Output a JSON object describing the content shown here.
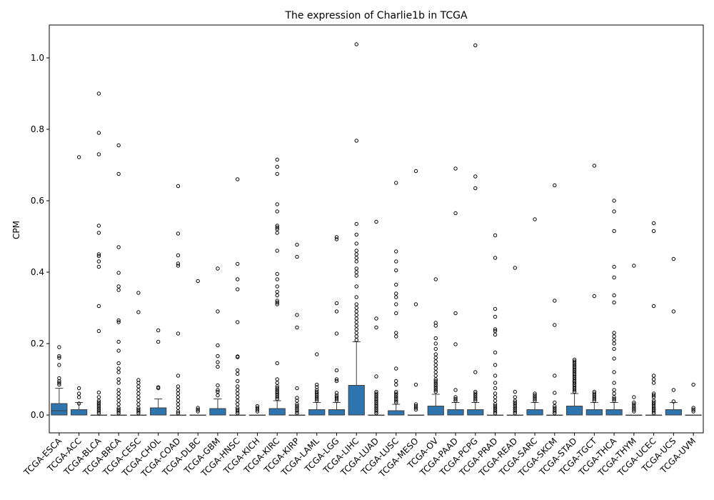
{
  "chart_data": {
    "type": "box",
    "title": "The expression of Charlie1b in TCGA",
    "xlabel": "",
    "ylabel": "CPM",
    "ylim": [
      -0.05,
      1.09
    ],
    "yticks": [
      0.0,
      0.2,
      0.4,
      0.6,
      0.8,
      1.0
    ],
    "ytick_labels": [
      "0.0",
      "0.2",
      "0.4",
      "0.6",
      "0.8",
      "1.0"
    ],
    "box_color": "#2e75b0",
    "categories": [
      "TCGA-ESCA",
      "TCGA-ACC",
      "TCGA-BLCA",
      "TCGA-BRCA",
      "TCGA-CESC",
      "TCGA-CHOL",
      "TCGA-COAD",
      "TCGA-DLBC",
      "TCGA-GBM",
      "TCGA-HNSC",
      "TCGA-KICH",
      "TCGA-KIRC",
      "TCGA-KIRP",
      "TCGA-LAML",
      "TCGA-LGG",
      "TCGA-LIHC",
      "TCGA-LUAD",
      "TCGA-LUSC",
      "TCGA-MESO",
      "TCGA-OV",
      "TCGA-PAAD",
      "TCGA-PCPG",
      "TCGA-PRAD",
      "TCGA-READ",
      "TCGA-SARC",
      "TCGA-SKCM",
      "TCGA-STAD",
      "TCGA-TGCT",
      "TCGA-THCA",
      "TCGA-THYM",
      "TCGA-UCEC",
      "TCGA-UCS",
      "TCGA-UVM"
    ],
    "boxes": [
      {
        "min": 0,
        "q1": 0,
        "median": 0.012,
        "q3": 0.032,
        "max": 0.075,
        "outliers": [
          0.09,
          0.085,
          0.095,
          0.103,
          0.14,
          0.16,
          0.165,
          0.19
        ]
      },
      {
        "min": 0,
        "q1": 0,
        "median": 0,
        "q3": 0.015,
        "max": 0.035,
        "outliers": [
          0.032,
          0.05,
          0.06,
          0.075,
          0.722
        ]
      },
      {
        "min": 0,
        "q1": 0,
        "median": 0,
        "q3": 0,
        "max": 0,
        "outliers": [
          0.005,
          0.01,
          0.015,
          0.02,
          0.025,
          0.03,
          0.035,
          0.04,
          0.05,
          0.063,
          0.235,
          0.305,
          0.415,
          0.43,
          0.445,
          0.45,
          0.51,
          0.53,
          0.73,
          0.79,
          0.9
        ]
      },
      {
        "min": 0,
        "q1": 0,
        "median": 0,
        "q3": 0,
        "max": 0,
        "outliers": [
          0.005,
          0.01,
          0.015,
          0.02,
          0.03,
          0.04,
          0.05,
          0.06,
          0.07,
          0.09,
          0.1,
          0.12,
          0.13,
          0.145,
          0.18,
          0.205,
          0.26,
          0.265,
          0.35,
          0.36,
          0.398,
          0.47,
          0.675,
          0.755
        ]
      },
      {
        "min": 0,
        "q1": 0,
        "median": 0,
        "q3": 0,
        "max": 0,
        "outliers": [
          0.005,
          0.01,
          0.015,
          0.02,
          0.03,
          0.04,
          0.05,
          0.06,
          0.07,
          0.08,
          0.09,
          0.098,
          0.288,
          0.342
        ]
      },
      {
        "min": 0,
        "q1": 0,
        "median": 0,
        "q3": 0.02,
        "max": 0.045,
        "outliers": [
          0.075,
          0.078,
          0.205,
          0.237
        ]
      },
      {
        "min": 0,
        "q1": 0,
        "median": 0,
        "q3": 0,
        "max": 0,
        "outliers": [
          0.005,
          0.01,
          0.02,
          0.03,
          0.04,
          0.05,
          0.06,
          0.07,
          0.08,
          0.11,
          0.228,
          0.418,
          0.424,
          0.447,
          0.508,
          0.641
        ]
      },
      {
        "min": 0,
        "q1": 0,
        "median": 0,
        "q3": 0,
        "max": 0,
        "outliers": [
          0.01,
          0.015,
          0.02,
          0.375
        ]
      },
      {
        "min": 0,
        "q1": 0,
        "median": 0,
        "q3": 0.018,
        "max": 0.045,
        "outliers": [
          0.055,
          0.065,
          0.07,
          0.083,
          0.135,
          0.148,
          0.165,
          0.195,
          0.29,
          0.41
        ]
      },
      {
        "min": 0,
        "q1": 0,
        "median": 0,
        "q3": 0,
        "max": 0,
        "outliers": [
          0.005,
          0.01,
          0.015,
          0.02,
          0.03,
          0.04,
          0.05,
          0.06,
          0.07,
          0.08,
          0.095,
          0.115,
          0.125,
          0.162,
          0.164,
          0.26,
          0.352,
          0.38,
          0.423,
          0.66
        ]
      },
      {
        "min": 0,
        "q1": 0,
        "median": 0,
        "q3": 0,
        "max": 0,
        "outliers": [
          0.01,
          0.015,
          0.02,
          0.025
        ]
      },
      {
        "min": 0,
        "q1": 0,
        "median": 0,
        "q3": 0.018,
        "max": 0.04,
        "outliers": [
          0.045,
          0.05,
          0.055,
          0.06,
          0.065,
          0.07,
          0.075,
          0.08,
          0.09,
          0.1,
          0.145,
          0.31,
          0.315,
          0.32,
          0.335,
          0.345,
          0.36,
          0.38,
          0.395,
          0.46,
          0.51,
          0.52,
          0.525,
          0.53,
          0.57,
          0.59,
          0.675,
          0.695,
          0.715
        ]
      },
      {
        "min": 0,
        "q1": 0,
        "median": 0,
        "q3": 0,
        "max": 0,
        "outliers": [
          0.005,
          0.01,
          0.015,
          0.02,
          0.025,
          0.03,
          0.04,
          0.048,
          0.075,
          0.245,
          0.28,
          0.443,
          0.477
        ]
      },
      {
        "min": 0,
        "q1": 0,
        "median": 0,
        "q3": 0.015,
        "max": 0.035,
        "outliers": [
          0.04,
          0.045,
          0.05,
          0.055,
          0.06,
          0.065,
          0.07,
          0.078,
          0.085,
          0.17
        ]
      },
      {
        "min": 0,
        "q1": 0,
        "median": 0,
        "q3": 0.015,
        "max": 0.035,
        "outliers": [
          0.04,
          0.045,
          0.05,
          0.055,
          0.062,
          0.095,
          0.1,
          0.125,
          0.228,
          0.29,
          0.313,
          0.492,
          0.498
        ]
      },
      {
        "min": 0,
        "q1": 0,
        "median": 0,
        "q3": 0.083,
        "max": 0.205,
        "outliers": [
          0.21,
          0.22,
          0.23,
          0.24,
          0.25,
          0.26,
          0.27,
          0.28,
          0.29,
          0.3,
          0.31,
          0.33,
          0.36,
          0.39,
          0.4,
          0.41,
          0.43,
          0.44,
          0.45,
          0.46,
          0.48,
          0.505,
          0.535,
          0.768,
          1.038
        ]
      },
      {
        "min": 0,
        "q1": 0,
        "median": 0,
        "q3": 0,
        "max": 0,
        "outliers": [
          0.005,
          0.01,
          0.015,
          0.02,
          0.025,
          0.03,
          0.035,
          0.04,
          0.045,
          0.05,
          0.055,
          0.06,
          0.065,
          0.108,
          0.245,
          0.27,
          0.541
        ]
      },
      {
        "min": 0,
        "q1": 0,
        "median": 0,
        "q3": 0.012,
        "max": 0.03,
        "outliers": [
          0.035,
          0.04,
          0.045,
          0.05,
          0.055,
          0.06,
          0.065,
          0.085,
          0.095,
          0.13,
          0.22,
          0.23,
          0.285,
          0.31,
          0.33,
          0.34,
          0.365,
          0.405,
          0.43,
          0.458,
          0.65
        ]
      },
      {
        "min": 0,
        "q1": 0,
        "median": 0,
        "q3": 0,
        "max": 0,
        "outliers": [
          0.015,
          0.02,
          0.025,
          0.03,
          0.085,
          0.31,
          0.683
        ]
      },
      {
        "min": 0,
        "q1": 0,
        "median": 0,
        "q3": 0.025,
        "max": 0.058,
        "outliers": [
          0.065,
          0.07,
          0.075,
          0.08,
          0.085,
          0.09,
          0.095,
          0.1,
          0.11,
          0.12,
          0.13,
          0.14,
          0.15,
          0.16,
          0.17,
          0.185,
          0.2,
          0.215,
          0.25,
          0.258,
          0.38
        ]
      },
      {
        "min": 0,
        "q1": 0,
        "median": 0,
        "q3": 0.015,
        "max": 0.035,
        "outliers": [
          0.04,
          0.045,
          0.05,
          0.07,
          0.198,
          0.285,
          0.565,
          0.69
        ]
      },
      {
        "min": 0,
        "q1": 0,
        "median": 0,
        "q3": 0.015,
        "max": 0.035,
        "outliers": [
          0.04,
          0.045,
          0.05,
          0.055,
          0.06,
          0.065,
          0.12,
          0.635,
          0.668,
          1.035
        ]
      },
      {
        "min": 0,
        "q1": 0,
        "median": 0,
        "q3": 0,
        "max": 0,
        "outliers": [
          0.005,
          0.01,
          0.015,
          0.02,
          0.025,
          0.03,
          0.04,
          0.05,
          0.06,
          0.075,
          0.09,
          0.11,
          0.14,
          0.175,
          0.225,
          0.235,
          0.24,
          0.275,
          0.297,
          0.44,
          0.503
        ]
      },
      {
        "min": 0,
        "q1": 0,
        "median": 0,
        "q3": 0,
        "max": 0,
        "outliers": [
          0.005,
          0.01,
          0.015,
          0.02,
          0.025,
          0.03,
          0.035,
          0.04,
          0.05,
          0.065,
          0.412
        ]
      },
      {
        "min": 0,
        "q1": 0,
        "median": 0,
        "q3": 0.015,
        "max": 0.035,
        "outliers": [
          0.04,
          0.045,
          0.05,
          0.055,
          0.06,
          0.548
        ]
      },
      {
        "min": 0,
        "q1": 0,
        "median": 0,
        "q3": 0,
        "max": 0,
        "outliers": [
          0.005,
          0.01,
          0.015,
          0.02,
          0.025,
          0.035,
          0.062,
          0.11,
          0.252,
          0.32,
          0.643
        ]
      },
      {
        "min": 0,
        "q1": 0,
        "median": 0,
        "q3": 0.025,
        "max": 0.06,
        "outliers": [
          0.065,
          0.07,
          0.075,
          0.08,
          0.085,
          0.09,
          0.095,
          0.1,
          0.105,
          0.11,
          0.115,
          0.12,
          0.125,
          0.13,
          0.135,
          0.14,
          0.145,
          0.15,
          0.155
        ]
      },
      {
        "min": 0,
        "q1": 0,
        "median": 0,
        "q3": 0.015,
        "max": 0.035,
        "outliers": [
          0.04,
          0.045,
          0.05,
          0.055,
          0.06,
          0.065,
          0.333,
          0.698
        ]
      },
      {
        "min": 0,
        "q1": 0,
        "median": 0,
        "q3": 0.015,
        "max": 0.035,
        "outliers": [
          0.04,
          0.045,
          0.05,
          0.06,
          0.07,
          0.09,
          0.12,
          0.158,
          0.185,
          0.2,
          0.21,
          0.22,
          0.23,
          0.315,
          0.335,
          0.385,
          0.415,
          0.515,
          0.57,
          0.6
        ]
      },
      {
        "min": 0,
        "q1": 0,
        "median": 0,
        "q3": 0,
        "max": 0,
        "outliers": [
          0.01,
          0.015,
          0.02,
          0.025,
          0.03,
          0.035,
          0.05,
          0.418
        ]
      },
      {
        "min": 0,
        "q1": 0,
        "median": 0,
        "q3": 0,
        "max": 0,
        "outliers": [
          0.005,
          0.01,
          0.015,
          0.02,
          0.025,
          0.03,
          0.035,
          0.04,
          0.05,
          0.055,
          0.06,
          0.09,
          0.1,
          0.11,
          0.305,
          0.515,
          0.537
        ]
      },
      {
        "min": 0,
        "q1": 0,
        "median": 0,
        "q3": 0.015,
        "max": 0.035,
        "outliers": [
          0.038,
          0.07,
          0.29,
          0.437
        ]
      },
      {
        "min": 0,
        "q1": 0,
        "median": 0,
        "q3": 0,
        "max": 0,
        "outliers": [
          0.01,
          0.015,
          0.02,
          0.085
        ]
      }
    ]
  }
}
